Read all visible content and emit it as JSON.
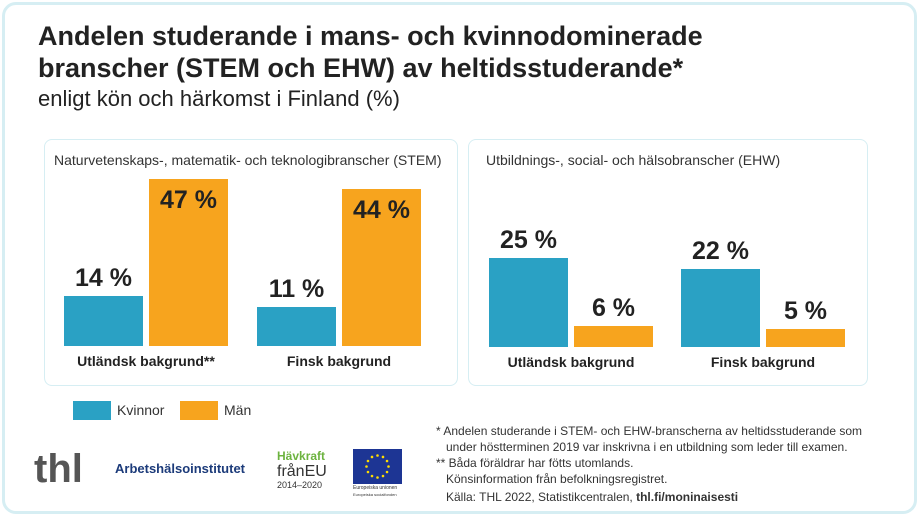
{
  "title": {
    "line1": "Andelen studerande i mans- och kvinnodominerade",
    "line2": "branscher (STEM och EHW) av heltidsstuderande*",
    "subtitle": "enligt kön och härkomst i Finland (%)"
  },
  "colors": {
    "Kvinnor": "#2aa1c4",
    "Män": "#f7a41e"
  },
  "chart_data": [
    {
      "type": "bar",
      "title": "Naturvetenskaps-, matematik- och teknologibranscher (STEM)",
      "categories": [
        "Utländsk bakgrund**",
        "Finsk bakgrund"
      ],
      "series": [
        {
          "name": "Kvinnor",
          "values": [
            14,
            11
          ]
        },
        {
          "name": "Män",
          "values": [
            47,
            44
          ]
        }
      ],
      "labels": [
        [
          "14 %",
          "11 %"
        ],
        [
          "47 %",
          "44 %"
        ]
      ],
      "unit": "%"
    },
    {
      "type": "bar",
      "title": "Utbildnings-, social- och hälsobranscher (EHW)",
      "categories": [
        "Utländsk bakgrund",
        "Finsk bakgrund"
      ],
      "series": [
        {
          "name": "Kvinnor",
          "values": [
            25,
            22
          ]
        },
        {
          "name": "Män",
          "values": [
            6,
            5
          ]
        }
      ],
      "labels": [
        [
          "25 %",
          "22 %"
        ],
        [
          "6 %",
          "5 %"
        ]
      ],
      "unit": "%"
    }
  ],
  "legend": [
    "Kvinnor",
    "Män"
  ],
  "logos": {
    "thl": "thl",
    "ttl": "Arbetshälsoinstitutet",
    "havkraft": [
      "Hävkraft",
      "frånEU",
      "2014–2020"
    ],
    "eu": [
      "Europeiska unionen",
      "Europeiska socialfonden"
    ]
  },
  "notes": {
    "n1a": "* Andelen studerande i STEM- och EHW-branscherna av heltidsstuderande som",
    "n1b": "under höstterminen 2019 var inskrivna i en utbildning som leder till examen.",
    "n2a": "** Båda föräldrar har fötts utomlands.",
    "n2b": "Könsinformation från befolkningsregistret.",
    "source": "Källa: THL 2022, Statistikcentralen, ",
    "link": "thl.fi/moninaisesti"
  }
}
